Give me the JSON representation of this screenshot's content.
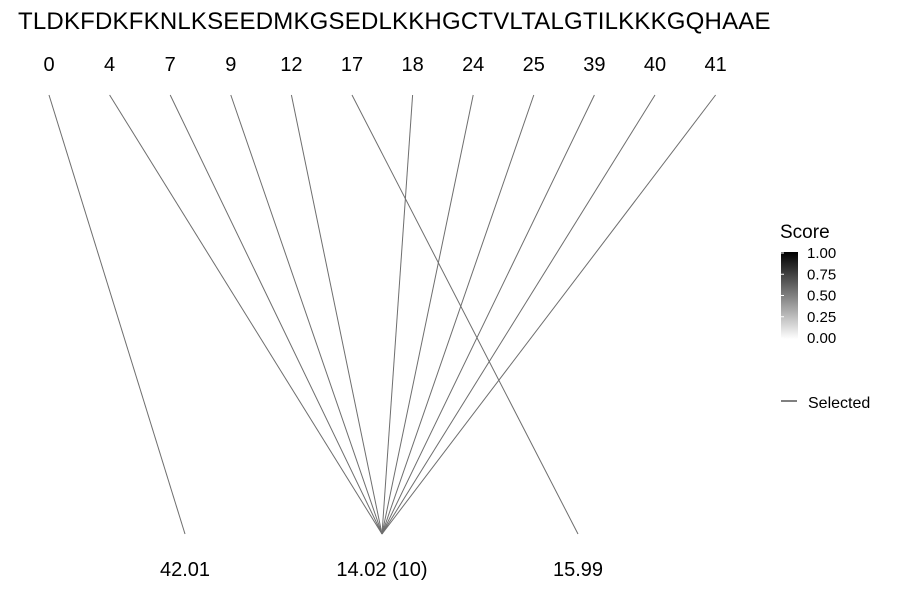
{
  "sequence": "TLDKFDKFKNLKSEEDMKGSEDLKKHGCTVLTALGTILKKKGQHAAE",
  "positions": [
    "0",
    "4",
    "7",
    "9",
    "12",
    "17",
    "18",
    "24",
    "25",
    "39",
    "40",
    "41"
  ],
  "targets": [
    "42.01",
    "14.02 (10)",
    "15.99"
  ],
  "links": [
    {
      "from": 0,
      "to": 0
    },
    {
      "from": 1,
      "to": 1
    },
    {
      "from": 2,
      "to": 1
    },
    {
      "from": 3,
      "to": 1
    },
    {
      "from": 4,
      "to": 1
    },
    {
      "from": 5,
      "to": 2
    },
    {
      "from": 6,
      "to": 1
    },
    {
      "from": 7,
      "to": 1
    },
    {
      "from": 8,
      "to": 1
    },
    {
      "from": 9,
      "to": 1
    },
    {
      "from": 10,
      "to": 1
    },
    {
      "from": 11,
      "to": 1
    }
  ],
  "legend": {
    "score_title": "Score",
    "score_ticks": [
      "1.00",
      "0.75",
      "0.50",
      "0.25",
      "0.00"
    ],
    "gradient_top": "#000000",
    "gradient_bottom": "#ffffff",
    "selected_label": "Selected"
  },
  "colors": {
    "line": "#6e6e6e"
  }
}
